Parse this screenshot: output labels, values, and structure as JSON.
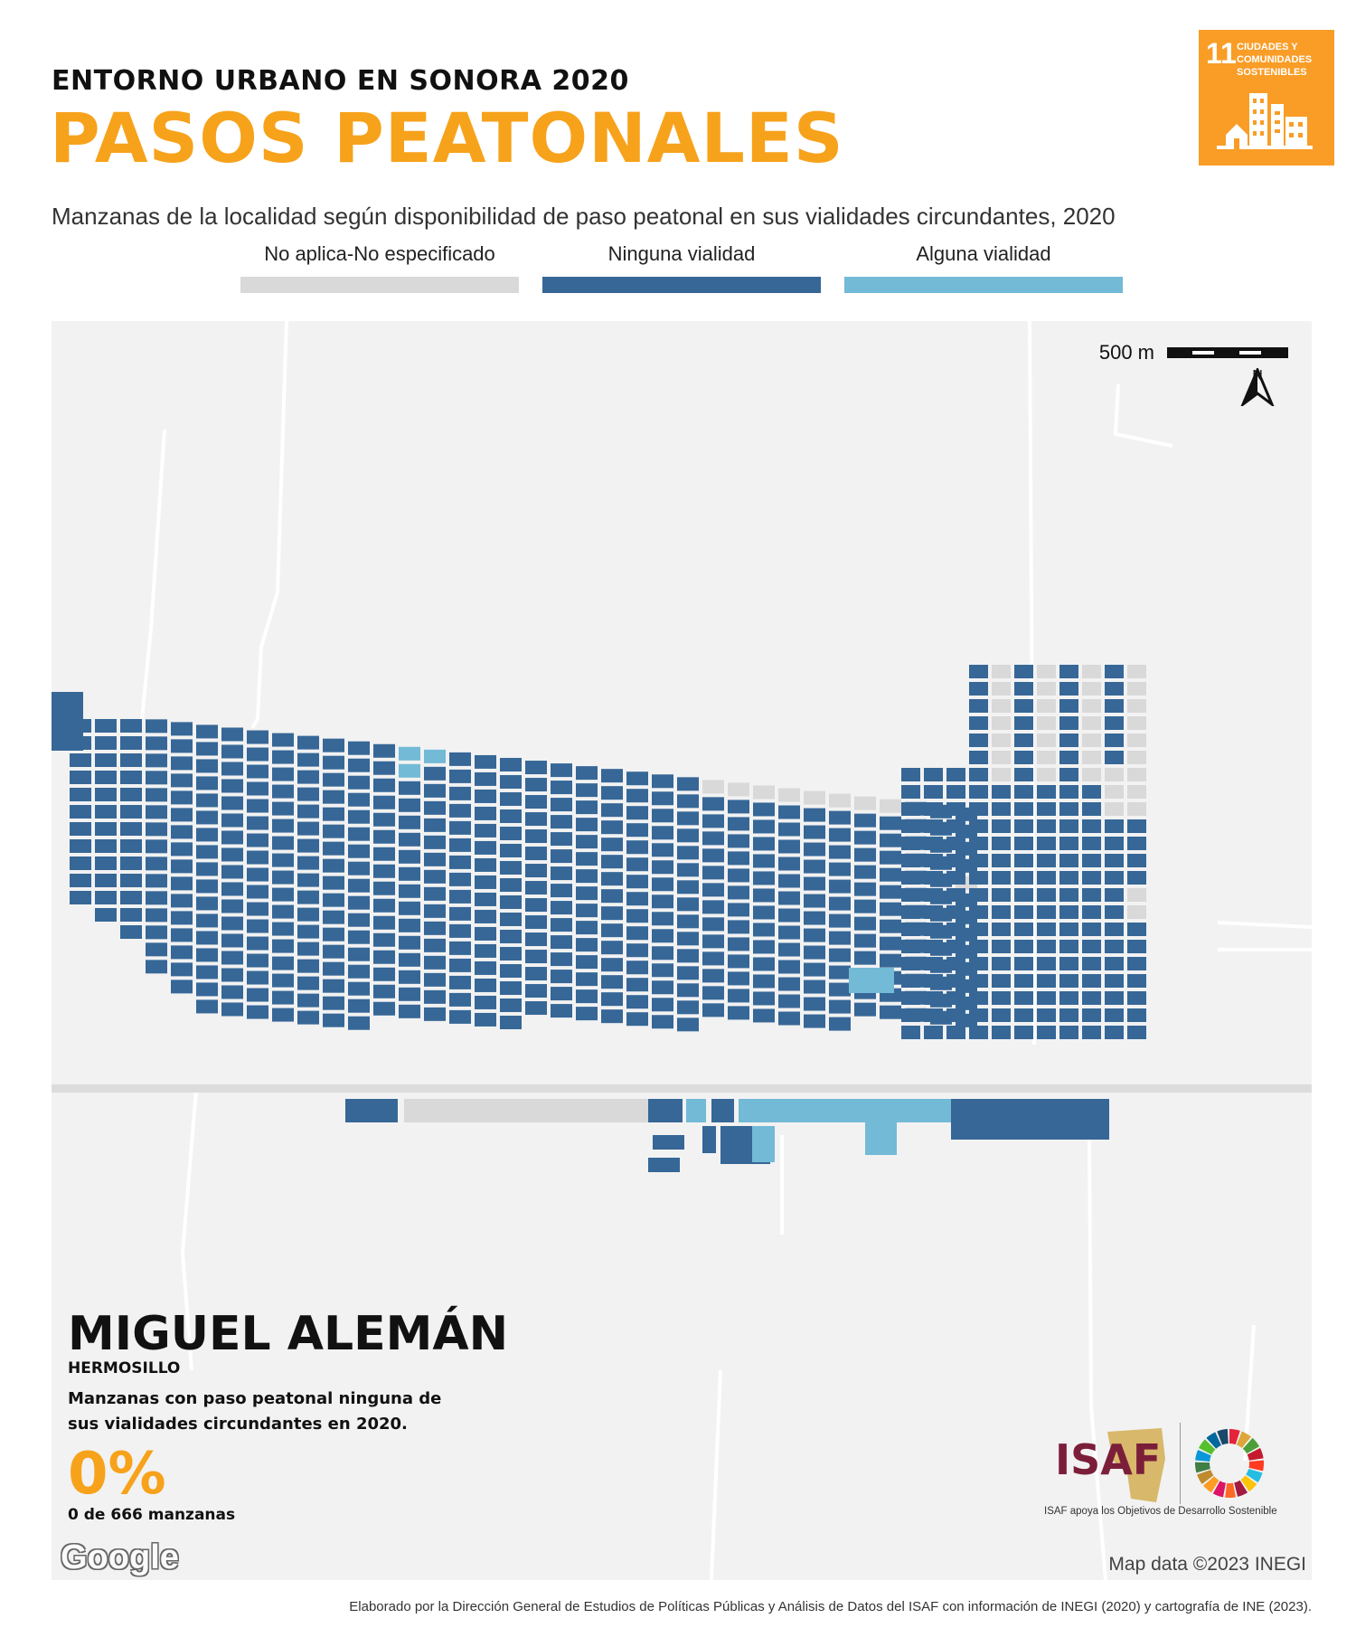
{
  "header": {
    "kicker": "ENTORNO URBANO EN SONORA 2020",
    "title": "PASOS PEATONALES",
    "subtitle": "Manzanas de la localidad según disponibilidad de paso peatonal en sus vialidades circundantes, 2020"
  },
  "sdg_badge": {
    "number": "11",
    "text": "CIUDADES Y COMUNIDADES SOSTENIBLES",
    "color": "#F99D26",
    "icon": "city-buildings-icon"
  },
  "legend": [
    {
      "label": "No aplica-No especificado",
      "color": "#D9D9D9"
    },
    {
      "label": "Ninguna vialidad",
      "color": "#366797"
    },
    {
      "label": "Alguna vialidad",
      "color": "#73BAD6"
    }
  ],
  "map": {
    "scale_label": "500 m",
    "north_label": "N",
    "attribution": "Map data ©2023 INEGI",
    "provider": "Google",
    "background_color": "#F2F2F2"
  },
  "locality": {
    "name": "MIGUEL ALEMÁN",
    "municipality": "HERMOSILLO",
    "description": "Manzanas con paso peatonal ninguna de sus vialidades circundantes en 2020.",
    "percentage": "0%",
    "count": "0 de 666 manzanas"
  },
  "logos": {
    "isaf": "ISAF",
    "isaf_caption": "ISAF apoya los Objetivos de Desarrollo Sostenible"
  },
  "footer": "Elaborado por la Dirección General de Estudios de Políticas Públicas y Análisis de Datos del ISAF con información de INEGI (2020) y cartografía de INE (2023)."
}
